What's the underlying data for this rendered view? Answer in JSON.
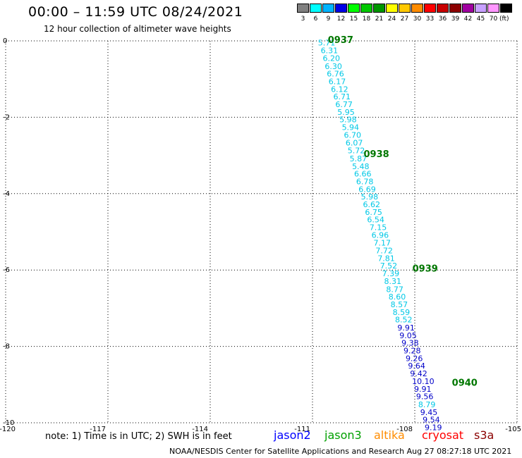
{
  "header": {
    "title": "00:00 – 11:59 UTC 08/24/2021",
    "subtitle": "12 hour collection of altimeter wave heights"
  },
  "colorbar": {
    "unit": "(ft)",
    "entries": [
      {
        "label": "3",
        "color": "#808080"
      },
      {
        "label": "6",
        "color": "#00ffff"
      },
      {
        "label": "9",
        "color": "#00b4ff"
      },
      {
        "label": "12",
        "color": "#0000e6"
      },
      {
        "label": "15",
        "color": "#00ff00"
      },
      {
        "label": "18",
        "color": "#00c800"
      },
      {
        "label": "21",
        "color": "#009600"
      },
      {
        "label": "24",
        "color": "#ffff00"
      },
      {
        "label": "27",
        "color": "#ffc800"
      },
      {
        "label": "30",
        "color": "#ff8c00"
      },
      {
        "label": "33",
        "color": "#ff0000"
      },
      {
        "label": "36",
        "color": "#c80000"
      },
      {
        "label": "39",
        "color": "#8c0000"
      },
      {
        "label": "42",
        "color": "#a000a0"
      },
      {
        "label": "45",
        "color": "#c8a0ff"
      },
      {
        "label": "70",
        "color": "#ff96ff"
      },
      {
        "label": "",
        "color": "#000000"
      }
    ]
  },
  "axes": {
    "x_ticks": [
      "-120",
      "-117",
      "-114",
      "-111",
      "-108",
      "-105"
    ],
    "y_ticks": [
      "0",
      "-2",
      "-4",
      "-6",
      "-8",
      "-10"
    ]
  },
  "chart_data": {
    "type": "scatter",
    "xlim": [
      -120,
      -105
    ],
    "ylim": [
      -10,
      0
    ],
    "grid": true,
    "colors": {
      "light": "#00c8e6",
      "dark": "#0000c8"
    },
    "points": [
      {
        "lon": -110.84,
        "lat": -0.05,
        "v": "5.71",
        "c": "light"
      },
      {
        "lon": -110.76,
        "lat": -0.25,
        "v": "6.31",
        "c": "light"
      },
      {
        "lon": -110.7,
        "lat": -0.45,
        "v": "6.20",
        "c": "light"
      },
      {
        "lon": -110.64,
        "lat": -0.66,
        "v": "6.30",
        "c": "light"
      },
      {
        "lon": -110.58,
        "lat": -0.86,
        "v": "6.76",
        "c": "light"
      },
      {
        "lon": -110.53,
        "lat": -1.06,
        "v": "6.17",
        "c": "light"
      },
      {
        "lon": -110.46,
        "lat": -1.26,
        "v": "6.12",
        "c": "light"
      },
      {
        "lon": -110.39,
        "lat": -1.46,
        "v": "6.71",
        "c": "light"
      },
      {
        "lon": -110.33,
        "lat": -1.66,
        "v": "6.77",
        "c": "light"
      },
      {
        "lon": -110.27,
        "lat": -1.86,
        "v": "5.95",
        "c": "light"
      },
      {
        "lon": -110.21,
        "lat": -2.06,
        "v": "5.98",
        "c": "light"
      },
      {
        "lon": -110.14,
        "lat": -2.26,
        "v": "5.94",
        "c": "light"
      },
      {
        "lon": -110.08,
        "lat": -2.46,
        "v": "6.70",
        "c": "light"
      },
      {
        "lon": -110.03,
        "lat": -2.67,
        "v": "6.07",
        "c": "light"
      },
      {
        "lon": -109.97,
        "lat": -2.87,
        "v": "5.72",
        "c": "light"
      },
      {
        "lon": -109.91,
        "lat": -3.08,
        "v": "5.87",
        "c": "light"
      },
      {
        "lon": -109.84,
        "lat": -3.28,
        "v": "5.48",
        "c": "light"
      },
      {
        "lon": -109.78,
        "lat": -3.48,
        "v": "6.66",
        "c": "light"
      },
      {
        "lon": -109.72,
        "lat": -3.68,
        "v": "6.78",
        "c": "light"
      },
      {
        "lon": -109.65,
        "lat": -3.88,
        "v": "6.69",
        "c": "light"
      },
      {
        "lon": -109.58,
        "lat": -4.08,
        "v": "5.98",
        "c": "light"
      },
      {
        "lon": -109.52,
        "lat": -4.28,
        "v": "6.62",
        "c": "light"
      },
      {
        "lon": -109.46,
        "lat": -4.48,
        "v": "6.75",
        "c": "light"
      },
      {
        "lon": -109.4,
        "lat": -4.68,
        "v": "6.54",
        "c": "light"
      },
      {
        "lon": -109.33,
        "lat": -4.88,
        "v": "7.15",
        "c": "light"
      },
      {
        "lon": -109.27,
        "lat": -5.08,
        "v": "6.96",
        "c": "light"
      },
      {
        "lon": -109.21,
        "lat": -5.29,
        "v": "7.17",
        "c": "light"
      },
      {
        "lon": -109.15,
        "lat": -5.49,
        "v": "7.72",
        "c": "light"
      },
      {
        "lon": -109.09,
        "lat": -5.69,
        "v": "7.81",
        "c": "light"
      },
      {
        "lon": -109.02,
        "lat": -5.89,
        "v": "7.52",
        "c": "light"
      },
      {
        "lon": -108.96,
        "lat": -6.09,
        "v": "7.39",
        "c": "light"
      },
      {
        "lon": -108.9,
        "lat": -6.29,
        "v": "8.31",
        "c": "light"
      },
      {
        "lon": -108.84,
        "lat": -6.5,
        "v": "8.77",
        "c": "light"
      },
      {
        "lon": -108.77,
        "lat": -6.7,
        "v": "8.60",
        "c": "light"
      },
      {
        "lon": -108.71,
        "lat": -6.9,
        "v": "8.57",
        "c": "light"
      },
      {
        "lon": -108.65,
        "lat": -7.1,
        "v": "8.59",
        "c": "light"
      },
      {
        "lon": -108.58,
        "lat": -7.3,
        "v": "8.52",
        "c": "light"
      },
      {
        "lon": -108.51,
        "lat": -7.51,
        "v": "9.91",
        "c": "dark"
      },
      {
        "lon": -108.45,
        "lat": -7.71,
        "v": "9.05",
        "c": "dark"
      },
      {
        "lon": -108.39,
        "lat": -7.91,
        "v": "9.38",
        "c": "dark"
      },
      {
        "lon": -108.33,
        "lat": -8.11,
        "v": "9.28",
        "c": "dark"
      },
      {
        "lon": -108.27,
        "lat": -8.31,
        "v": "9.26",
        "c": "dark"
      },
      {
        "lon": -108.2,
        "lat": -8.51,
        "v": "9.64",
        "c": "dark"
      },
      {
        "lon": -108.14,
        "lat": -8.71,
        "v": "9.42",
        "c": "dark"
      },
      {
        "lon": -108.08,
        "lat": -8.91,
        "v": "10.10",
        "c": "dark"
      },
      {
        "lon": -108.02,
        "lat": -9.11,
        "v": "9.91",
        "c": "dark"
      },
      {
        "lon": -107.96,
        "lat": -9.31,
        "v": "9.56",
        "c": "dark"
      },
      {
        "lon": -107.9,
        "lat": -9.52,
        "v": "8.79",
        "c": "light"
      },
      {
        "lon": -107.84,
        "lat": -9.72,
        "v": "9.45",
        "c": "dark"
      },
      {
        "lon": -107.77,
        "lat": -9.92,
        "v": "9.54",
        "c": "dark"
      },
      {
        "lon": -107.71,
        "lat": -10.12,
        "v": "9.19",
        "c": "dark"
      }
    ],
    "time_labels": [
      {
        "lon": -110.55,
        "lat": 0.02,
        "text": "0937"
      },
      {
        "lon": -109.5,
        "lat": -2.97,
        "text": "0938"
      },
      {
        "lon": -108.07,
        "lat": -5.97,
        "text": "0939"
      },
      {
        "lon": -106.91,
        "lat": -8.96,
        "text": "0940"
      }
    ]
  },
  "footer": {
    "note": "note:  1) Time is in UTC;  2) SWH is in feet",
    "legend": [
      {
        "name": "jason2",
        "color": "#0000ff"
      },
      {
        "name": "jason3",
        "color": "#00a000"
      },
      {
        "name": "altika",
        "color": "#ff8c00"
      },
      {
        "name": "cryosat",
        "color": "#ff0000"
      },
      {
        "name": "s3a",
        "color": "#8b0000"
      }
    ],
    "credit": "NOAA/NESDIS Center for Satellite Applications and Research     Aug 27 08:27:18 UTC 2021"
  }
}
